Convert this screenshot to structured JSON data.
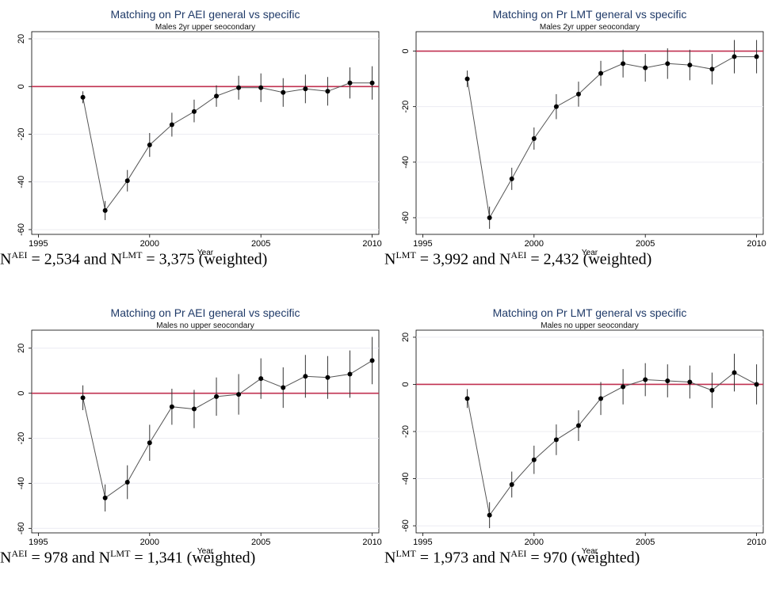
{
  "chart_data": [
    {
      "type": "scatter",
      "title": "Matching on Pr AEI general vs specific",
      "subtitle": "Males 2yr upper seocondary",
      "xlabel": "Year",
      "ylabel": "",
      "xlim": [
        1994.7,
        2010.3
      ],
      "ylim": [
        -62,
        23
      ],
      "xticks": [
        "1995",
        "2000",
        "2005",
        "2010"
      ],
      "yticks": [
        "20",
        "0",
        "-20",
        "-40",
        "-60"
      ],
      "ytick_values": [
        20,
        0,
        -20,
        -40,
        -60
      ],
      "reference_line": 0,
      "grid": true,
      "legend": "none",
      "colors": {
        "series": "#555555",
        "reference": "#c03050",
        "title": "#1f3a68"
      },
      "x": [
        1997,
        1998,
        1999,
        2000,
        2001,
        2002,
        2003,
        2004,
        2005,
        2006,
        2007,
        2008,
        2009,
        2010
      ],
      "series": [
        {
          "values": [
            -4.5,
            -52,
            -39.5,
            -24.5,
            -16,
            -10.5,
            -4,
            -0.5,
            -0.5,
            -2.5,
            -1,
            -2,
            1.5,
            1.5
          ],
          "ci_low": [
            -7,
            -56,
            -44,
            -29.5,
            -21,
            -15,
            -8.5,
            -5.5,
            -6.5,
            -8.5,
            -7,
            -8,
            -5,
            -5.5
          ],
          "ci_high": [
            -2,
            -48,
            -35,
            -19.5,
            -11,
            -5.5,
            0.5,
            4.5,
            5.5,
            3.5,
            5,
            4,
            8,
            8.5
          ]
        }
      ],
      "caption": {
        "n1": "N",
        "s1": "AEI",
        "t1": " = 2,534 and N",
        "s2": "LMT",
        "t2": " = 3,375 (weighted)"
      }
    },
    {
      "type": "scatter",
      "title": "Matching on Pr LMT general vs specific",
      "subtitle": "Males 2yr upper seocondary",
      "xlabel": "Year",
      "ylabel": "",
      "xlim": [
        1994.7,
        2010.3
      ],
      "ylim": [
        -66,
        7
      ],
      "xticks": [
        "1995",
        "2000",
        "2005",
        "2010"
      ],
      "yticks": [
        "0",
        "-20",
        "-40",
        "-60"
      ],
      "ytick_values": [
        0,
        -20,
        -40,
        -60
      ],
      "reference_line": 0,
      "grid": true,
      "legend": "none",
      "colors": {
        "series": "#555555",
        "reference": "#c03050",
        "title": "#1f3a68"
      },
      "x": [
        1997,
        1998,
        1999,
        2000,
        2001,
        2002,
        2003,
        2004,
        2005,
        2006,
        2007,
        2008,
        2009,
        2010
      ],
      "series": [
        {
          "values": [
            -10,
            -60,
            -46,
            -31.5,
            -20,
            -15.5,
            -8,
            -4.5,
            -6,
            -4.5,
            -5,
            -6.5,
            -2,
            -2
          ],
          "ci_low": [
            -13,
            -64,
            -50,
            -35.5,
            -24.5,
            -20,
            -12.5,
            -9.5,
            -11,
            -10,
            -10.5,
            -12,
            -8,
            -8
          ],
          "ci_high": [
            -7,
            -56,
            -42,
            -27.5,
            -15.5,
            -11,
            -3.5,
            0.5,
            -1,
            1,
            0.5,
            -1,
            4,
            4
          ]
        }
      ],
      "caption": {
        "n1": "N",
        "s1": "LMT",
        "t1": " = 3,992 and N",
        "s2": "AEI",
        "t2": " = 2,432 (weighted)"
      }
    },
    {
      "type": "scatter",
      "title": "Matching on Pr AEI general vs specific",
      "subtitle": "Males no upper seocondary",
      "xlabel": "Year",
      "ylabel": "",
      "xlim": [
        1994.7,
        2010.3
      ],
      "ylim": [
        -62,
        28
      ],
      "xticks": [
        "1995",
        "2000",
        "2005",
        "2010"
      ],
      "yticks": [
        "20",
        "0",
        "-20",
        "-40",
        "-60"
      ],
      "ytick_values": [
        20,
        0,
        -20,
        -40,
        -60
      ],
      "reference_line": 0,
      "grid": true,
      "legend": "none",
      "colors": {
        "series": "#555555",
        "reference": "#c03050",
        "title": "#1f3a68"
      },
      "x": [
        1997,
        1998,
        1999,
        2000,
        2001,
        2002,
        2003,
        2004,
        2005,
        2006,
        2007,
        2008,
        2009,
        2010
      ],
      "series": [
        {
          "values": [
            -2,
            -46.5,
            -39.5,
            -22,
            -6,
            -7,
            -1.5,
            -0.5,
            6.5,
            2.5,
            7.5,
            7,
            8.5,
            14.5
          ],
          "ci_low": [
            -7.5,
            -52.5,
            -47,
            -30,
            -14,
            -15.5,
            -10,
            -9.5,
            -2.5,
            -6.5,
            -2,
            -2.5,
            -2,
            4
          ],
          "ci_high": [
            3.5,
            -40.5,
            -32,
            -14,
            2,
            1.5,
            7,
            8.5,
            15.5,
            11.5,
            17,
            16.5,
            19,
            25
          ]
        }
      ],
      "caption": {
        "n1": "N",
        "s1": "AEI",
        "t1": " = 978 and N",
        "s2": "LMT",
        "t2": " = 1,341 (weighted)"
      }
    },
    {
      "type": "scatter",
      "title": "Matching on Pr LMT general vs specific",
      "subtitle": "Males no upper seocondary",
      "xlabel": "Year",
      "ylabel": "",
      "xlim": [
        1994.7,
        2010.3
      ],
      "ylim": [
        -63,
        23
      ],
      "xticks": [
        "1995",
        "2000",
        "2005",
        "2010"
      ],
      "yticks": [
        "20",
        "0",
        "-20",
        "-40",
        "-60"
      ],
      "ytick_values": [
        20,
        0,
        -20,
        -40,
        -60
      ],
      "reference_line": 0,
      "grid": true,
      "legend": "none",
      "colors": {
        "series": "#555555",
        "reference": "#c03050",
        "title": "#1f3a68"
      },
      "x": [
        1997,
        1998,
        1999,
        2000,
        2001,
        2002,
        2003,
        2004,
        2005,
        2006,
        2007,
        2008,
        2009,
        2010
      ],
      "series": [
        {
          "values": [
            -6,
            -55.5,
            -42.5,
            -32,
            -23.5,
            -17.5,
            -6,
            -1,
            2,
            1.5,
            1,
            -2.5,
            5,
            0
          ],
          "ci_low": [
            -10,
            -61,
            -48,
            -38,
            -30,
            -24,
            -13,
            -8.5,
            -5,
            -5.5,
            -6,
            -10,
            -3,
            -8.5
          ],
          "ci_high": [
            -2,
            -50,
            -37,
            -26,
            -17,
            -11,
            1,
            6.5,
            9,
            8.5,
            8,
            5,
            13,
            8.5
          ]
        }
      ],
      "caption": {
        "n1": "N",
        "s1": "LMT",
        "t1": " = 1,973 and N",
        "s2": "AEI",
        "t2": " = 970 (weighted)"
      }
    }
  ]
}
